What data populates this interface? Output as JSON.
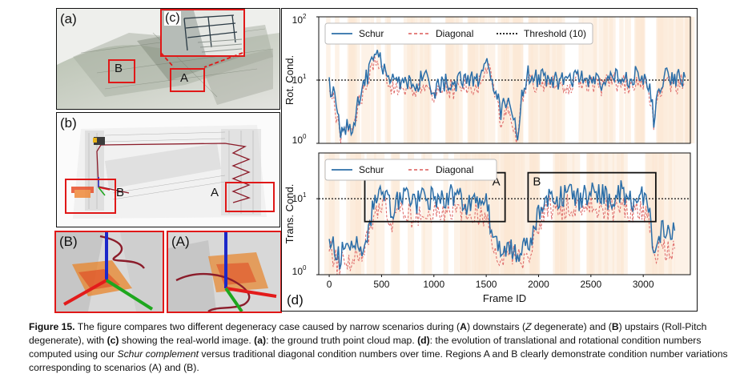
{
  "panels": {
    "a": {
      "label": "(a)",
      "region_b": "B",
      "region_a": "A"
    },
    "c": {
      "label": "(c)"
    },
    "b": {
      "label": "(b)",
      "region_b": "B",
      "region_a": "A"
    },
    "zoom_b": {
      "label": "(B)"
    },
    "zoom_a": {
      "label": "(A)"
    },
    "d": {
      "label": "(d)"
    }
  },
  "chart_data": [
    {
      "type": "line",
      "ylabel": "Rot. Cond.",
      "xlabel": "",
      "yscale": "log",
      "ylim": [
        1,
        100
      ],
      "xlim": [
        -100,
        3450
      ],
      "y_ticks": [
        "10",
        "10",
        "10"
      ],
      "y_tick_exps": [
        "0",
        "1",
        "2"
      ],
      "y_tick_values": [
        1,
        10,
        100
      ],
      "legend": {
        "placement": "top",
        "entries": [
          "Schur",
          "Diagonal",
          "Threshold (10)"
        ]
      },
      "threshold": 10,
      "series": [
        {
          "name": "Schur",
          "color": "#2b6ea8",
          "style": "solid"
        },
        {
          "name": "Diagonal",
          "color": "#e0706e",
          "style": "dashed"
        },
        {
          "name": "Threshold (10)",
          "color": "#111111",
          "style": "dotted"
        }
      ],
      "x": [
        0,
        40,
        80,
        100,
        130,
        170,
        210,
        260,
        300,
        340,
        380,
        420,
        460,
        500,
        540,
        580,
        620,
        700,
        800,
        900,
        1000,
        1100,
        1200,
        1300,
        1400,
        1480,
        1520,
        1580,
        1640,
        1700,
        1760,
        1800,
        1840,
        1900,
        2000,
        2100,
        2200,
        2300,
        2400,
        2500,
        2600,
        2700,
        2800,
        2900,
        2950,
        3000,
        3050,
        3100,
        3150,
        3200,
        3300,
        3400
      ],
      "y_schur": [
        9,
        6,
        2.5,
        1.6,
        1.4,
        2.2,
        1.8,
        3.2,
        6,
        9,
        14,
        20,
        25,
        20,
        13,
        9,
        10,
        9.5,
        8,
        11,
        7,
        9,
        8.5,
        11,
        9.5,
        14,
        18,
        8,
        3,
        5,
        2,
        1.3,
        6,
        12,
        10,
        11,
        9,
        10,
        12,
        11,
        9,
        12,
        10,
        11,
        14,
        12,
        9,
        2.5,
        8,
        11,
        10,
        11
      ],
      "y_diag": [
        8,
        5,
        2,
        1.3,
        1.2,
        1.8,
        1.5,
        2.7,
        5,
        8,
        12,
        17,
        21,
        17,
        11,
        8,
        8.5,
        8,
        6.5,
        9,
        6,
        7.5,
        7,
        9,
        8,
        11,
        15,
        6.5,
        2.5,
        4,
        1.6,
        1.1,
        5,
        10,
        8,
        9,
        7.5,
        8.5,
        10,
        9,
        7.5,
        10,
        8.5,
        9,
        11,
        10,
        7.5,
        2,
        6.5,
        9,
        8.5,
        9
      ]
    },
    {
      "type": "line",
      "ylabel": "Trans. Cond.",
      "xlabel": "Frame ID",
      "yscale": "log",
      "ylim": [
        1,
        40
      ],
      "xlim": [
        -100,
        3450
      ],
      "x_ticks": [
        "0",
        "500",
        "1000",
        "1500",
        "2000",
        "2500",
        "3000"
      ],
      "x_tick_values": [
        0,
        500,
        1000,
        1500,
        2000,
        2500,
        3000
      ],
      "y_ticks": [
        "10",
        "10"
      ],
      "y_tick_exps": [
        "0",
        "1"
      ],
      "y_tick_values": [
        1,
        10
      ],
      "legend": {
        "placement": "top-left",
        "entries": [
          "Schur",
          "Diagonal"
        ]
      },
      "threshold": 10,
      "annotations": [
        {
          "label": "A",
          "x_range": [
            340,
            1680
          ],
          "y_range": [
            5,
            22
          ]
        },
        {
          "label": "B",
          "x_range": [
            1900,
            3120
          ],
          "y_range": [
            5,
            22
          ]
        }
      ],
      "series": [
        {
          "name": "Schur",
          "color": "#2b6ea8",
          "style": "solid"
        },
        {
          "name": "Diagonal",
          "color": "#e0706e",
          "style": "dashed"
        }
      ],
      "x": [
        0,
        50,
        100,
        150,
        200,
        250,
        300,
        350,
        400,
        450,
        500,
        550,
        600,
        650,
        700,
        800,
        900,
        1000,
        1100,
        1200,
        1300,
        1400,
        1500,
        1550,
        1600,
        1650,
        1700,
        1800,
        1900,
        2000,
        2100,
        2200,
        2300,
        2400,
        2500,
        2600,
        2700,
        2800,
        2900,
        3000,
        3050,
        3100,
        3150,
        3200,
        3300
      ],
      "y_schur": [
        3,
        2,
        1.6,
        2.2,
        1.8,
        2.6,
        2.2,
        3,
        6,
        9,
        14,
        11,
        7,
        9,
        12,
        8,
        11,
        10,
        9,
        12,
        8,
        10,
        9,
        4,
        2.5,
        2.2,
        2.6,
        2,
        2.2,
        6,
        12,
        10,
        13,
        9,
        14,
        11,
        10,
        13,
        9,
        11,
        8,
        2,
        3.5,
        4,
        3.8
      ],
      "y_diag": [
        2.5,
        1.6,
        1.3,
        1.8,
        1.5,
        2.1,
        1.8,
        2.5,
        4.5,
        6.5,
        9,
        7,
        5,
        6,
        8,
        5.5,
        7,
        6.5,
        6,
        8,
        5.5,
        6.5,
        6,
        3,
        2,
        1.8,
        2,
        1.6,
        1.8,
        4.5,
        8,
        7,
        8.5,
        6.5,
        9,
        7.5,
        7,
        8.5,
        6.5,
        7.5,
        5.5,
        1.6,
        2.2,
        2.2,
        2.2
      ]
    }
  ],
  "caption": {
    "label": "Figure 15.",
    "t1": " The figure compares two different degeneracy case caused by narrow scenarios during (",
    "b1": "A",
    "t2": ") downstairs (",
    "i1": "Z",
    "t3": " degenerate) and (",
    "b2": "B",
    "t4": ") upstairs (Roll-Pitch degenerate), with ",
    "b3": "(c)",
    "t5": " showing the real-world image. ",
    "b4": "(a)",
    "t6": ": the ground truth point cloud map. ",
    "b5": "(d)",
    "t7": ": the evolution of translational and rotational condition numbers computed using our ",
    "i2": "Schur complement",
    "t8": " versus traditional diagonal condition numbers over time. Regions A and B clearly demonstrate condition number variations corresponding to scenarios (A) and (B)."
  }
}
